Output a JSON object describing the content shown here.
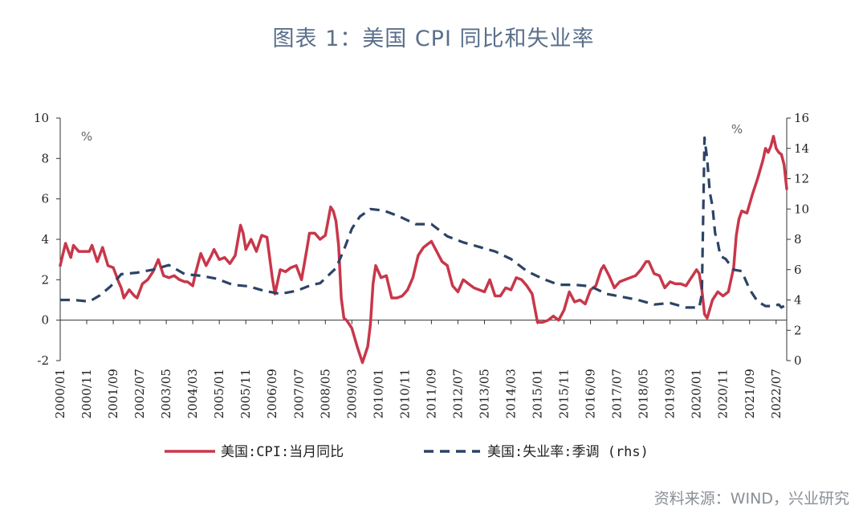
{
  "title": "图表 1：美国 CPI 同比和失业率",
  "source": "资料来源：WIND，兴业研究",
  "chart_data": {
    "type": "line",
    "left_unit": "%",
    "right_unit": "%",
    "ylim_left": [
      -2,
      10
    ],
    "ylim_right": [
      0,
      16
    ],
    "yticks_left": [
      -2,
      0,
      2,
      4,
      6,
      8,
      10
    ],
    "yticks_right": [
      0,
      2,
      4,
      6,
      8,
      10,
      12,
      14,
      16
    ],
    "x_start": "2000/01",
    "x_end": "2022/11",
    "xtick_labels": [
      "2000/01",
      "2000/11",
      "2001/09",
      "2002/07",
      "2003/05",
      "2004/03",
      "2005/01",
      "2005/11",
      "2006/09",
      "2007/07",
      "2008/05",
      "2009/03",
      "2010/01",
      "2010/11",
      "2011/09",
      "2012/07",
      "2013/05",
      "2014/03",
      "2015/01",
      "2015/11",
      "2016/09",
      "2017/07",
      "2018/05",
      "2019/03",
      "2020/01",
      "2020/11",
      "2021/09",
      "2022/07"
    ],
    "series": [
      {
        "name": "美国:CPI:当月同比",
        "axis": "left",
        "color": "#c8374a",
        "style": "solid",
        "points": [
          [
            "2000/01",
            2.7
          ],
          [
            "2000/03",
            3.8
          ],
          [
            "2000/05",
            3.1
          ],
          [
            "2000/06",
            3.7
          ],
          [
            "2000/08",
            3.4
          ],
          [
            "2000/10",
            3.4
          ],
          [
            "2000/12",
            3.4
          ],
          [
            "2001/01",
            3.7
          ],
          [
            "2001/03",
            2.9
          ],
          [
            "2001/05",
            3.6
          ],
          [
            "2001/07",
            2.7
          ],
          [
            "2001/09",
            2.6
          ],
          [
            "2001/11",
            1.9
          ],
          [
            "2001/12",
            1.6
          ],
          [
            "2002/01",
            1.1
          ],
          [
            "2002/03",
            1.5
          ],
          [
            "2002/05",
            1.2
          ],
          [
            "2002/06",
            1.1
          ],
          [
            "2002/08",
            1.8
          ],
          [
            "2002/10",
            2.0
          ],
          [
            "2002/12",
            2.4
          ],
          [
            "2003/02",
            3.0
          ],
          [
            "2003/04",
            2.2
          ],
          [
            "2003/06",
            2.1
          ],
          [
            "2003/08",
            2.2
          ],
          [
            "2003/10",
            2.0
          ],
          [
            "2003/12",
            1.9
          ],
          [
            "2004/01",
            1.9
          ],
          [
            "2004/03",
            1.7
          ],
          [
            "2004/04",
            2.3
          ],
          [
            "2004/06",
            3.3
          ],
          [
            "2004/08",
            2.7
          ],
          [
            "2004/10",
            3.2
          ],
          [
            "2004/11",
            3.5
          ],
          [
            "2005/01",
            3.0
          ],
          [
            "2005/03",
            3.1
          ],
          [
            "2005/05",
            2.8
          ],
          [
            "2005/07",
            3.2
          ],
          [
            "2005/09",
            4.7
          ],
          [
            "2005/10",
            4.3
          ],
          [
            "2005/11",
            3.5
          ],
          [
            "2006/01",
            4.0
          ],
          [
            "2006/03",
            3.4
          ],
          [
            "2006/05",
            4.2
          ],
          [
            "2006/07",
            4.1
          ],
          [
            "2006/09",
            2.1
          ],
          [
            "2006/10",
            1.3
          ],
          [
            "2006/12",
            2.5
          ],
          [
            "2007/02",
            2.4
          ],
          [
            "2007/04",
            2.6
          ],
          [
            "2007/06",
            2.7
          ],
          [
            "2007/08",
            2.0
          ],
          [
            "2007/10",
            3.5
          ],
          [
            "2007/11",
            4.3
          ],
          [
            "2008/01",
            4.3
          ],
          [
            "2008/03",
            4.0
          ],
          [
            "2008/05",
            4.2
          ],
          [
            "2008/07",
            5.6
          ],
          [
            "2008/08",
            5.4
          ],
          [
            "2008/09",
            4.9
          ],
          [
            "2008/10",
            3.7
          ],
          [
            "2008/11",
            1.1
          ],
          [
            "2008/12",
            0.1
          ],
          [
            "2009/01",
            0.0
          ],
          [
            "2009/03",
            -0.4
          ],
          [
            "2009/05",
            -1.3
          ],
          [
            "2009/07",
            -2.1
          ],
          [
            "2009/09",
            -1.3
          ],
          [
            "2009/10",
            -0.2
          ],
          [
            "2009/11",
            1.8
          ],
          [
            "2009/12",
            2.7
          ],
          [
            "2010/02",
            2.1
          ],
          [
            "2010/04",
            2.2
          ],
          [
            "2010/06",
            1.1
          ],
          [
            "2010/08",
            1.1
          ],
          [
            "2010/10",
            1.2
          ],
          [
            "2010/12",
            1.5
          ],
          [
            "2011/02",
            2.1
          ],
          [
            "2011/04",
            3.2
          ],
          [
            "2011/06",
            3.6
          ],
          [
            "2011/08",
            3.8
          ],
          [
            "2011/09",
            3.9
          ],
          [
            "2011/11",
            3.4
          ],
          [
            "2012/01",
            2.9
          ],
          [
            "2012/03",
            2.7
          ],
          [
            "2012/05",
            1.7
          ],
          [
            "2012/07",
            1.4
          ],
          [
            "2012/09",
            2.0
          ],
          [
            "2012/11",
            1.8
          ],
          [
            "2013/01",
            1.6
          ],
          [
            "2013/03",
            1.5
          ],
          [
            "2013/05",
            1.4
          ],
          [
            "2013/07",
            2.0
          ],
          [
            "2013/09",
            1.2
          ],
          [
            "2013/11",
            1.2
          ],
          [
            "2014/01",
            1.6
          ],
          [
            "2014/03",
            1.5
          ],
          [
            "2014/05",
            2.1
          ],
          [
            "2014/07",
            2.0
          ],
          [
            "2014/09",
            1.7
          ],
          [
            "2014/11",
            1.3
          ],
          [
            "2015/01",
            -0.1
          ],
          [
            "2015/03",
            -0.1
          ],
          [
            "2015/05",
            0.0
          ],
          [
            "2015/07",
            0.2
          ],
          [
            "2015/09",
            0.0
          ],
          [
            "2015/11",
            0.5
          ],
          [
            "2016/01",
            1.4
          ],
          [
            "2016/03",
            0.9
          ],
          [
            "2016/05",
            1.0
          ],
          [
            "2016/07",
            0.8
          ],
          [
            "2016/09",
            1.5
          ],
          [
            "2016/11",
            1.7
          ],
          [
            "2017/01",
            2.5
          ],
          [
            "2017/02",
            2.7
          ],
          [
            "2017/04",
            2.2
          ],
          [
            "2017/06",
            1.6
          ],
          [
            "2017/08",
            1.9
          ],
          [
            "2017/10",
            2.0
          ],
          [
            "2017/12",
            2.1
          ],
          [
            "2018/02",
            2.2
          ],
          [
            "2018/04",
            2.5
          ],
          [
            "2018/06",
            2.9
          ],
          [
            "2018/07",
            2.9
          ],
          [
            "2018/09",
            2.3
          ],
          [
            "2018/11",
            2.2
          ],
          [
            "2019/01",
            1.6
          ],
          [
            "2019/03",
            1.9
          ],
          [
            "2019/05",
            1.8
          ],
          [
            "2019/07",
            1.8
          ],
          [
            "2019/09",
            1.7
          ],
          [
            "2019/11",
            2.1
          ],
          [
            "2020/01",
            2.5
          ],
          [
            "2020/02",
            2.3
          ],
          [
            "2020/03",
            1.5
          ],
          [
            "2020/04",
            0.3
          ],
          [
            "2020/05",
            0.1
          ],
          [
            "2020/07",
            1.0
          ],
          [
            "2020/09",
            1.4
          ],
          [
            "2020/11",
            1.2
          ],
          [
            "2021/01",
            1.4
          ],
          [
            "2021/03",
            2.6
          ],
          [
            "2021/04",
            4.2
          ],
          [
            "2021/05",
            5.0
          ],
          [
            "2021/06",
            5.4
          ],
          [
            "2021/08",
            5.3
          ],
          [
            "2021/10",
            6.2
          ],
          [
            "2021/12",
            7.0
          ],
          [
            "2022/02",
            7.9
          ],
          [
            "2022/03",
            8.5
          ],
          [
            "2022/04",
            8.3
          ],
          [
            "2022/05",
            8.6
          ],
          [
            "2022/06",
            9.1
          ],
          [
            "2022/07",
            8.5
          ],
          [
            "2022/08",
            8.3
          ],
          [
            "2022/09",
            8.2
          ],
          [
            "2022/10",
            7.7
          ],
          [
            "2022/11",
            6.5
          ]
        ]
      },
      {
        "name": "美国:失业率:季调 (rhs)",
        "axis": "right",
        "color": "#2d4366",
        "style": "dashed",
        "points": [
          [
            "2000/01",
            4.0
          ],
          [
            "2000/06",
            4.0
          ],
          [
            "2000/12",
            3.9
          ],
          [
            "2001/04",
            4.3
          ],
          [
            "2001/08",
            4.9
          ],
          [
            "2001/10",
            5.3
          ],
          [
            "2001/12",
            5.7
          ],
          [
            "2002/06",
            5.8
          ],
          [
            "2002/12",
            6.0
          ],
          [
            "2003/06",
            6.3
          ],
          [
            "2003/12",
            5.7
          ],
          [
            "2004/06",
            5.6
          ],
          [
            "2004/12",
            5.4
          ],
          [
            "2005/06",
            5.0
          ],
          [
            "2005/12",
            4.9
          ],
          [
            "2006/06",
            4.6
          ],
          [
            "2006/12",
            4.4
          ],
          [
            "2007/06",
            4.6
          ],
          [
            "2007/12",
            5.0
          ],
          [
            "2008/03",
            5.1
          ],
          [
            "2008/06",
            5.6
          ],
          [
            "2008/09",
            6.1
          ],
          [
            "2008/12",
            7.3
          ],
          [
            "2009/03",
            8.7
          ],
          [
            "2009/06",
            9.5
          ],
          [
            "2009/10",
            10.0
          ],
          [
            "2010/03",
            9.9
          ],
          [
            "2010/09",
            9.5
          ],
          [
            "2011/03",
            9.0
          ],
          [
            "2011/09",
            9.0
          ],
          [
            "2012/03",
            8.2
          ],
          [
            "2012/09",
            7.8
          ],
          [
            "2013/03",
            7.5
          ],
          [
            "2013/09",
            7.2
          ],
          [
            "2014/03",
            6.7
          ],
          [
            "2014/09",
            5.9
          ],
          [
            "2015/03",
            5.4
          ],
          [
            "2015/09",
            5.0
          ],
          [
            "2016/03",
            5.0
          ],
          [
            "2016/09",
            4.9
          ],
          [
            "2017/03",
            4.4
          ],
          [
            "2017/09",
            4.2
          ],
          [
            "2018/03",
            4.0
          ],
          [
            "2018/09",
            3.7
          ],
          [
            "2019/03",
            3.8
          ],
          [
            "2019/09",
            3.5
          ],
          [
            "2020/01",
            3.5
          ],
          [
            "2020/02",
            3.5
          ],
          [
            "2020/03",
            4.4
          ],
          [
            "2020/04",
            14.7
          ],
          [
            "2020/05",
            13.3
          ],
          [
            "2020/06",
            11.1
          ],
          [
            "2020/07",
            10.2
          ],
          [
            "2020/08",
            8.4
          ],
          [
            "2020/09",
            7.8
          ],
          [
            "2020/10",
            6.9
          ],
          [
            "2020/12",
            6.7
          ],
          [
            "2021/03",
            6.0
          ],
          [
            "2021/06",
            5.9
          ],
          [
            "2021/09",
            4.7
          ],
          [
            "2021/12",
            3.9
          ],
          [
            "2022/03",
            3.6
          ],
          [
            "2022/06",
            3.6
          ],
          [
            "2022/08",
            3.7
          ],
          [
            "2022/09",
            3.5
          ],
          [
            "2022/11",
            3.7
          ]
        ]
      }
    ]
  }
}
